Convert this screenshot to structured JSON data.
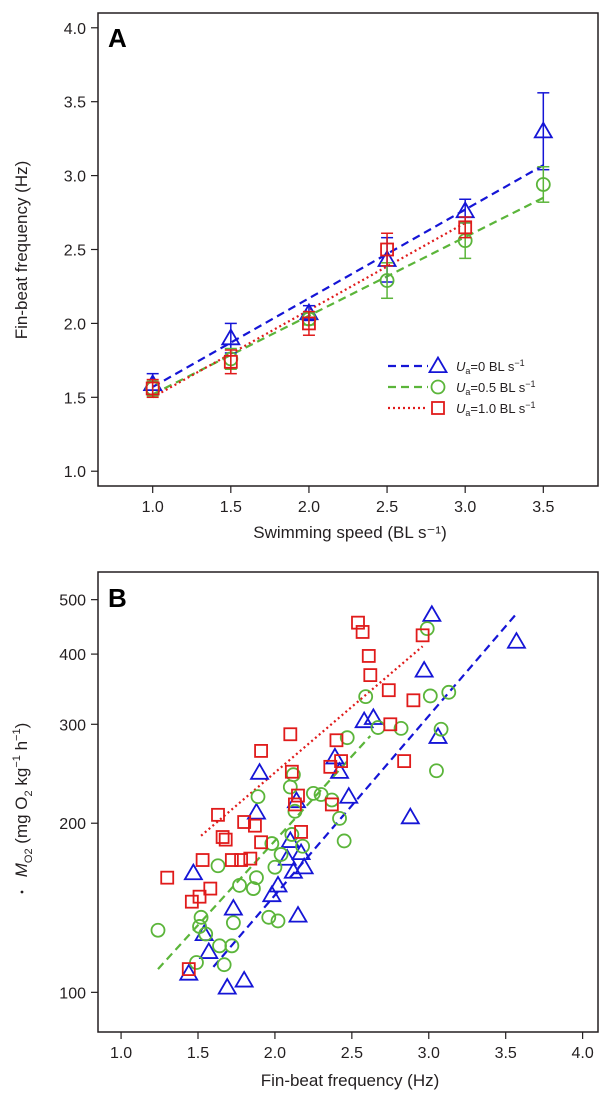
{
  "colors": {
    "u0": "#1515d6",
    "u05": "#5bb53a",
    "u10": "#e01b1b",
    "axis": "#231f20"
  },
  "chart_data": [
    {
      "panel": "A",
      "type": "line",
      "xlabel": "Swimming speed (BL s⁻¹)",
      "ylabel": "Fin-beat frequency (Hz)",
      "xlim": [
        0.65,
        3.85
      ],
      "ylim": [
        0.9,
        4.1
      ],
      "x_ticks": [
        1.0,
        1.5,
        2.0,
        2.5,
        3.0,
        3.5
      ],
      "x_tick_labels": [
        "1.0",
        "1.5",
        "2.0",
        "2.5",
        "3.0",
        "3.5"
      ],
      "y_ticks": [
        1.0,
        1.5,
        2.0,
        2.5,
        3.0,
        3.5,
        4.0
      ],
      "y_tick_labels": [
        "1.0",
        "1.5",
        "2.0",
        "2.5",
        "3.0",
        "3.5",
        "4.0"
      ],
      "legend_position": "bottom-right",
      "series": [
        {
          "key": "u0",
          "name_main": "U",
          "name_sub": "a",
          "name_rest": "=0 BL s",
          "name_sup": "−1",
          "marker": "triangle",
          "line": "dashed",
          "x": [
            1.0,
            1.5,
            2.0,
            2.5,
            3.0,
            3.5
          ],
          "y": [
            1.59,
            1.9,
            2.07,
            2.43,
            2.76,
            3.3
          ],
          "err": [
            0.07,
            0.1,
            0.05,
            0.15,
            0.08,
            0.26
          ],
          "fit": [
            [
              1.0,
              1.57
            ],
            [
              3.5,
              3.07
            ]
          ]
        },
        {
          "key": "u05",
          "name_main": "U",
          "name_sub": "a",
          "name_rest": "=0.5 BL s",
          "name_sup": "−1",
          "marker": "circle",
          "line": "dashed",
          "x": [
            1.0,
            1.5,
            2.0,
            2.5,
            3.0,
            3.5
          ],
          "y": [
            1.56,
            1.76,
            2.03,
            2.29,
            2.56,
            2.94
          ],
          "err": [
            0.05,
            0.07,
            0.04,
            0.12,
            0.12,
            0.12
          ],
          "fit": [
            [
              1.0,
              1.52
            ],
            [
              3.5,
              2.85
            ]
          ]
        },
        {
          "key": "u10",
          "name_main": "U",
          "name_sub": "a",
          "name_rest": "=1.0 BL s",
          "name_sup": "−1",
          "marker": "square",
          "line": "dotted",
          "x": [
            1.0,
            1.5,
            2.0,
            2.5,
            3.0
          ],
          "y": [
            1.56,
            1.74,
            2.0,
            2.5,
            2.65
          ],
          "err": [
            0.06,
            0.08,
            0.08,
            0.11,
            0.07
          ],
          "fit": [
            [
              1.0,
              1.5
            ],
            [
              3.0,
              2.68
            ]
          ]
        }
      ]
    },
    {
      "panel": "B",
      "type": "scatter",
      "xlabel": "Fin-beat frequency (Hz)",
      "ylabel_pre": "M",
      "ylabel_sub": "O2",
      "ylabel_post": " (mg O",
      "ylabel_sub2": "2",
      "ylabel_post2": " kg",
      "ylabel_sup1": "−1",
      "ylabel_post3": " h",
      "ylabel_sup2": "−1",
      "ylabel_post4": ")",
      "y_scale": "log",
      "xlim": [
        0.85,
        4.1
      ],
      "ylim": [
        85,
        560
      ],
      "x_ticks": [
        1.0,
        1.5,
        2.0,
        2.5,
        3.0,
        3.5,
        4.0
      ],
      "x_tick_labels": [
        "1.0",
        "1.5",
        "2.0",
        "2.5",
        "3.0",
        "3.5",
        "4.0"
      ],
      "y_ticks": [
        100,
        200,
        300,
        400,
        500
      ],
      "y_tick_labels": [
        "100",
        "200",
        "300",
        "400",
        "500"
      ],
      "series": [
        {
          "key": "u0",
          "marker": "triangle",
          "line": "dashed",
          "points": [
            [
              1.44,
              108
            ],
            [
              1.47,
              163
            ],
            [
              1.54,
              127
            ],
            [
              1.57,
              118
            ],
            [
              1.69,
              102
            ],
            [
              1.73,
              141
            ],
            [
              1.8,
              105
            ],
            [
              1.88,
              209
            ],
            [
              1.9,
              246
            ],
            [
              1.98,
              149
            ],
            [
              2.02,
              155
            ],
            [
              2.08,
              173
            ],
            [
              2.1,
              186
            ],
            [
              2.12,
              164
            ],
            [
              2.14,
              219
            ],
            [
              2.15,
              137
            ],
            [
              2.17,
              177
            ],
            [
              2.19,
              167
            ],
            [
              2.39,
              262
            ],
            [
              2.42,
              247
            ],
            [
              2.48,
              223
            ],
            [
              2.58,
              304
            ],
            [
              2.64,
              308
            ],
            [
              2.88,
              205
            ],
            [
              2.97,
              374
            ],
            [
              3.02,
              470
            ],
            [
              3.06,
              285
            ],
            [
              3.57,
              421
            ]
          ],
          "fit": [
            [
              1.6,
              111
            ],
            [
              3.57,
              472
            ]
          ]
        },
        {
          "key": "u05",
          "marker": "circle",
          "line": "dashed",
          "points": [
            [
              1.24,
              129
            ],
            [
              1.49,
              113
            ],
            [
              1.51,
              131
            ],
            [
              1.52,
              136
            ],
            [
              1.55,
              127
            ],
            [
              1.63,
              168
            ],
            [
              1.64,
              121
            ],
            [
              1.67,
              112
            ],
            [
              1.72,
              121
            ],
            [
              1.73,
              133
            ],
            [
              1.77,
              155
            ],
            [
              1.86,
              153
            ],
            [
              1.88,
              160
            ],
            [
              1.89,
              223
            ],
            [
              1.96,
              136
            ],
            [
              1.98,
              184
            ],
            [
              2.0,
              167
            ],
            [
              2.02,
              134
            ],
            [
              2.04,
              176
            ],
            [
              2.1,
              232
            ],
            [
              2.11,
              191
            ],
            [
              2.12,
              244
            ],
            [
              2.13,
              210
            ],
            [
              2.18,
              182
            ],
            [
              2.25,
              226
            ],
            [
              2.3,
              225
            ],
            [
              2.37,
              220
            ],
            [
              2.42,
              204
            ],
            [
              2.45,
              186
            ],
            [
              2.47,
              284
            ],
            [
              2.59,
              336
            ],
            [
              2.67,
              296
            ],
            [
              2.82,
              295
            ],
            [
              2.99,
              444
            ],
            [
              3.01,
              337
            ],
            [
              3.05,
              248
            ],
            [
              3.08,
              294
            ],
            [
              3.13,
              342
            ]
          ],
          "fit": [
            [
              1.24,
              110
            ],
            [
              2.62,
              286
            ]
          ]
        },
        {
          "key": "u10",
          "marker": "square",
          "line": "dotted",
          "points": [
            [
              1.3,
              160
            ],
            [
              1.44,
              110
            ],
            [
              1.46,
              145
            ],
            [
              1.51,
              148
            ],
            [
              1.53,
              172
            ],
            [
              1.58,
              153
            ],
            [
              1.63,
              207
            ],
            [
              1.66,
              189
            ],
            [
              1.68,
              187
            ],
            [
              1.72,
              172
            ],
            [
              1.78,
              172
            ],
            [
              1.8,
              201
            ],
            [
              1.84,
              173
            ],
            [
              1.87,
              198
            ],
            [
              1.91,
              185
            ],
            [
              1.91,
              269
            ],
            [
              2.1,
              288
            ],
            [
              2.11,
              247
            ],
            [
              2.13,
              216
            ],
            [
              2.15,
              224
            ],
            [
              2.17,
              193
            ],
            [
              2.36,
              252
            ],
            [
              2.37,
              216
            ],
            [
              2.4,
              281
            ],
            [
              2.43,
              258
            ],
            [
              2.54,
              455
            ],
            [
              2.57,
              438
            ],
            [
              2.61,
              397
            ],
            [
              2.62,
              367
            ],
            [
              2.75,
              300
            ],
            [
              2.74,
              345
            ],
            [
              2.84,
              258
            ],
            [
              2.9,
              331
            ],
            [
              2.96,
              432
            ]
          ],
          "fit": [
            [
              1.52,
              190
            ],
            [
              2.96,
              413
            ]
          ]
        }
      ]
    }
  ]
}
